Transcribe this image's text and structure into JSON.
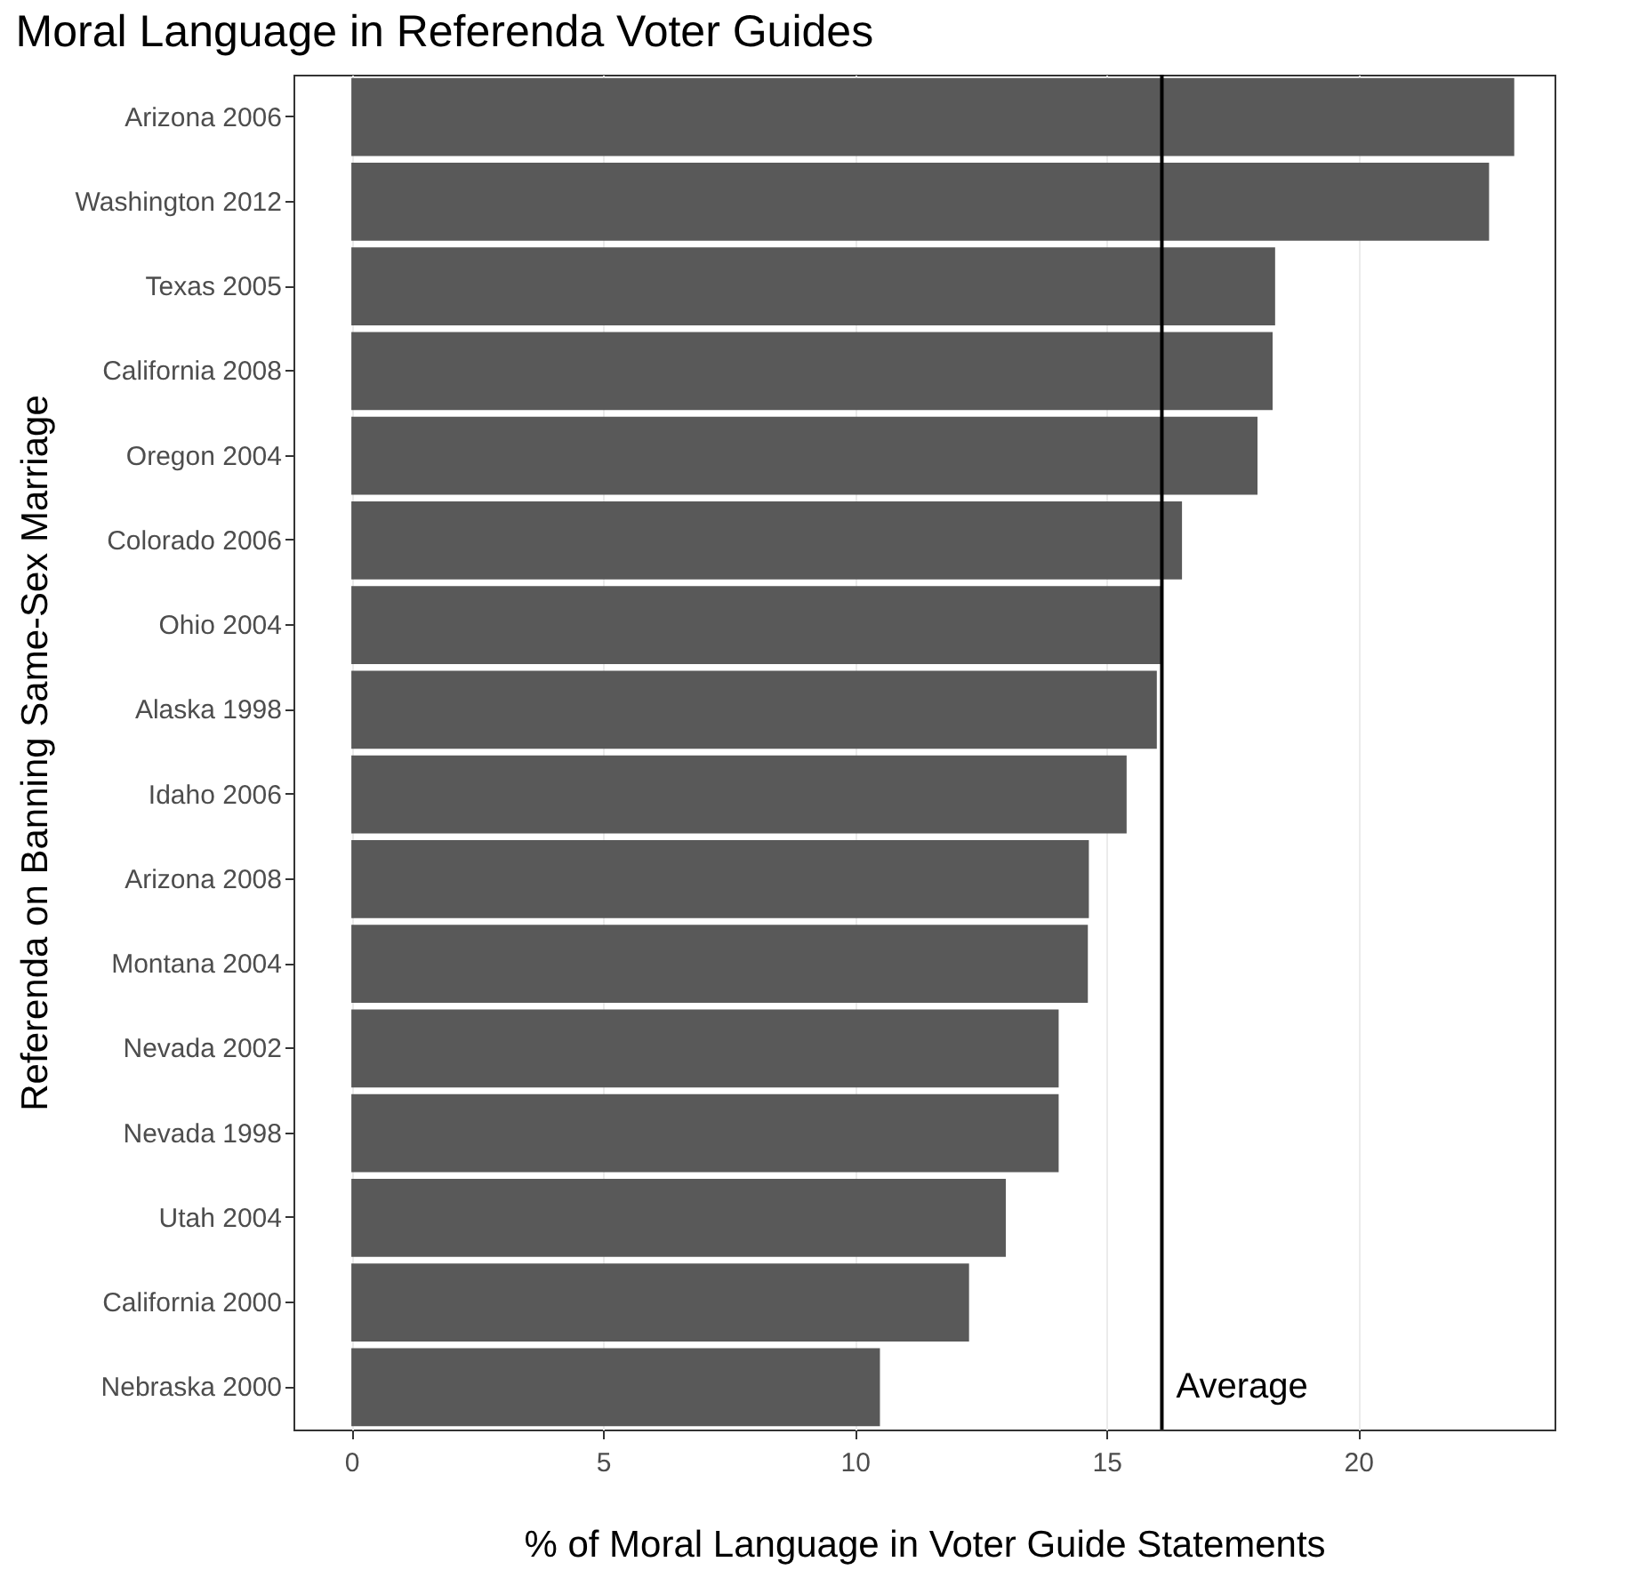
{
  "chart_data": {
    "type": "bar",
    "orientation": "horizontal",
    "title": "Moral Language in Referenda Voter Guides",
    "xlabel": "% of Moral Language in Voter Guide Statements",
    "ylabel": "Referenda on Banning Same-Sex Marriage",
    "categories": [
      "Arizona 2006",
      "Washington 2012",
      "Texas 2005",
      "California 2008",
      "Oregon 2004",
      "Colorado 2006",
      "Ohio 2004",
      "Alaska 1998",
      "Idaho 2006",
      "Arizona 2008",
      "Montana 2004",
      "Nevada 2002",
      "Nevada 1998",
      "Utah 2004",
      "California 2000",
      "Nebraska 2000"
    ],
    "values": [
      23.1,
      22.6,
      18.35,
      18.3,
      18.0,
      16.5,
      16.1,
      16.0,
      15.4,
      14.65,
      14.63,
      14.05,
      14.05,
      13.0,
      12.27,
      10.5
    ],
    "color": "#595959",
    "xlim": [
      -1.15,
      23.9
    ],
    "xticks": [
      0,
      5,
      10,
      15,
      20
    ],
    "grid": "x",
    "ref_lines": [
      {
        "axis": "x",
        "value": 16.1,
        "label": "Average",
        "color": "#000000"
      }
    ]
  }
}
